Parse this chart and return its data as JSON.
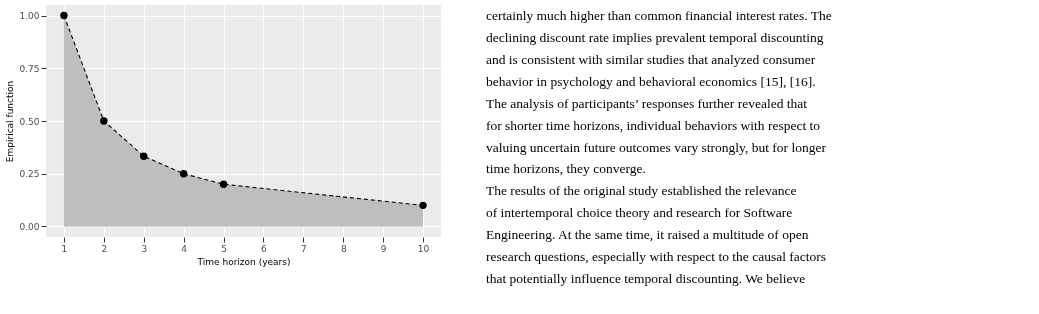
{
  "chart_data": {
    "type": "area",
    "xlabel": "Time horizon (years)",
    "ylabel": "Empirical function",
    "x": [
      1,
      2,
      3,
      4,
      5,
      10
    ],
    "series": [
      {
        "color": "#bebebe",
        "values": [
          1.0,
          0.5,
          0.333,
          0.25,
          0.2,
          0.1
        ]
      }
    ],
    "marker": "circle",
    "line_style": "dashed",
    "grid": true,
    "xlim": [
      0.55,
      10.45
    ],
    "xticks": [
      1,
      2,
      3,
      4,
      5,
      6,
      7,
      8,
      9,
      10
    ],
    "ylim": [
      -0.05,
      1.05
    ],
    "yticks": [
      {
        "value": 0,
        "label": "0.00"
      },
      {
        "value": 0.25,
        "label": "0.25"
      },
      {
        "value": 0.5,
        "label": "0.50"
      },
      {
        "value": 0.75,
        "label": "0.75"
      },
      {
        "value": 1,
        "label": "1.00"
      }
    ],
    "annotations": [
      "certainly much higher than common financial interest rates. The",
      "declining discount rate implies prevalent temporal discounting",
      "and is consistent with similar studies that analyzed consumer",
      "behavior in psychology and behavioral economics [15], [16].",
      "The analysis of participants’ responses further revealed that",
      "for shorter time horizons, individual behaviors with respect to",
      "valuing uncertain future outcomes vary strongly, but for longer",
      "time horizons, they converge.",
      "The results of the original study established the relevance",
      "of intertemporal choice theory and research for Software",
      "Engineering. At the same time, it raised a multitude of open",
      "research questions, especially with respect to the causal factors",
      "that potentially influence temporal discounting. We believe"
    ]
  }
}
